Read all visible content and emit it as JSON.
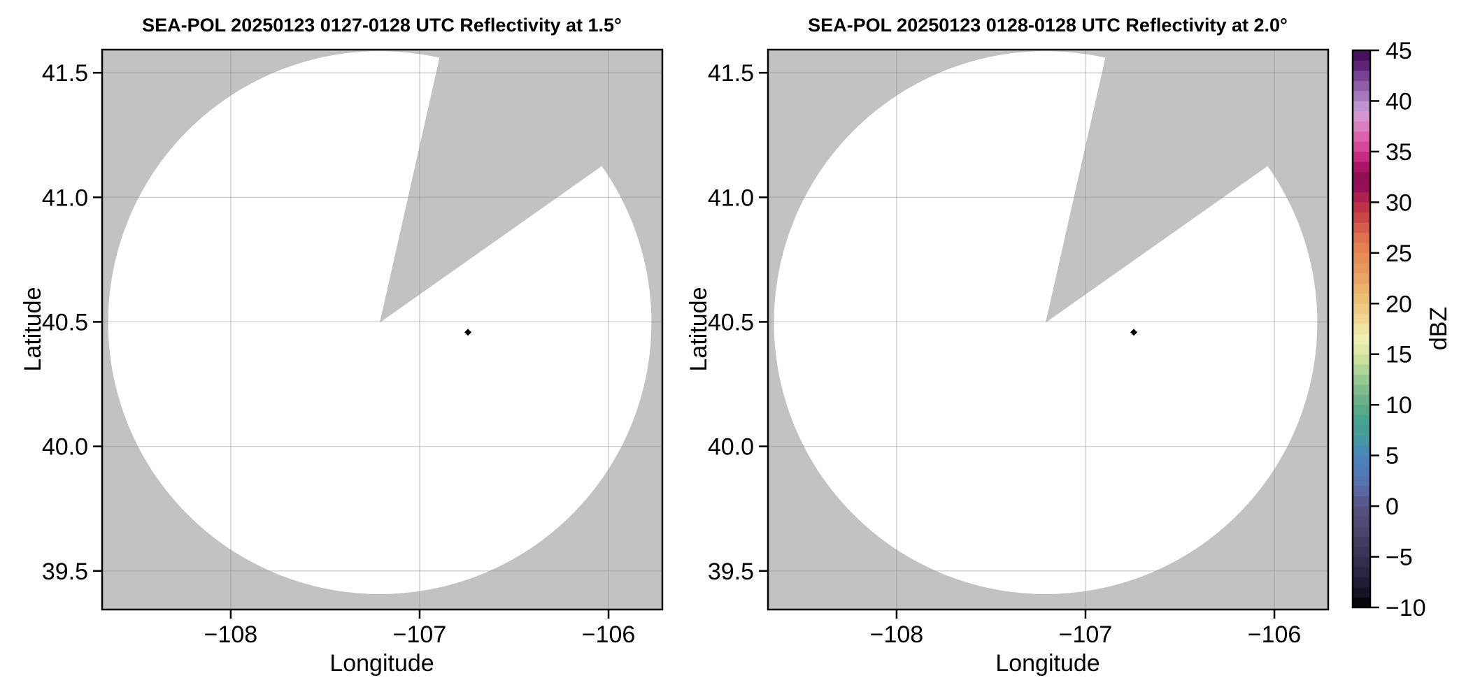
{
  "figure": {
    "background": "#ffffff"
  },
  "chart_data": {
    "type": "radar_ppi_pair",
    "field": "Reflectivity",
    "xlabel": "Longitude",
    "ylabel": "Latitude",
    "xlim": [
      -108.681,
      -105.715
    ],
    "ylim": [
      39.345,
      41.593
    ],
    "grid": true,
    "x_ticks": {
      "values": [
        -108,
        -107,
        -106
      ],
      "labels": [
        "−108",
        "−107",
        "−106"
      ]
    },
    "y_ticks": {
      "values": [
        41.5,
        41.0,
        40.5,
        40.0,
        39.5
      ],
      "labels": [
        "41.5",
        "41.0",
        "40.5",
        "40.0",
        "39.5"
      ]
    },
    "panels": [
      {
        "title": "SEA-POL 20250123 0127-0128 UTC Reflectivity at 1.5°",
        "radar_name": "SEA-POL",
        "date": "20250123",
        "time_utc": "0127-0128",
        "elevation_deg": 1.5
      },
      {
        "title": "SEA-POL 20250123 0128-0128 UTC Reflectivity at 2.0°",
        "radar_name": "SEA-POL",
        "date": "20250123",
        "time_utc": "0128-0128",
        "elevation_deg": 2.0
      }
    ],
    "radar": {
      "lon": -107.211,
      "lat": 40.497,
      "range_radius_lat_deg": 1.09,
      "no_data_sector_azimuth_deg": [
        12.7,
        54.8
      ]
    },
    "echo_points": [
      {
        "lon": -106.744,
        "lat": 40.458
      }
    ],
    "colors": {
      "outside_range_fill": "#c2c2c2",
      "in_range_fill": "#ffffff",
      "gridline": "#8f8f8f",
      "spine": "#000000",
      "echo_point": "#000000"
    },
    "colorbar": {
      "label": "dBZ",
      "vmin": -10,
      "vmax": 45,
      "band_step_dbz": 1,
      "colormap_name": "ChaseSpectral-like",
      "ticks": {
        "values": [
          45,
          40,
          35,
          30,
          25,
          20,
          15,
          10,
          5,
          0,
          -5,
          -10
        ],
        "labels": [
          "45",
          "40",
          "35",
          "30",
          "25",
          "20",
          "15",
          "10",
          "5",
          "0",
          "−5",
          "−10"
        ]
      },
      "color_stops": [
        [
          -10,
          "#000000"
        ],
        [
          -8,
          "#1c1830"
        ],
        [
          -6,
          "#2f2945"
        ],
        [
          -4,
          "#413a5c"
        ],
        [
          -2,
          "#4e4770"
        ],
        [
          0,
          "#575180"
        ],
        [
          1,
          "#596099"
        ],
        [
          2,
          "#5870ae"
        ],
        [
          3.5,
          "#4f7cb9"
        ],
        [
          5,
          "#4a84bc"
        ],
        [
          6,
          "#4692ab"
        ],
        [
          7,
          "#449c9b"
        ],
        [
          8.5,
          "#47a392"
        ],
        [
          10,
          "#61ad88"
        ],
        [
          11.5,
          "#7fbd8d"
        ],
        [
          13,
          "#a3cf94"
        ],
        [
          14.5,
          "#cce09e"
        ],
        [
          15.5,
          "#e0eaa6"
        ],
        [
          16.5,
          "#eff0af"
        ],
        [
          17.5,
          "#f1e4a2"
        ],
        [
          19,
          "#efcf88"
        ],
        [
          20,
          "#edc57d"
        ],
        [
          21.5,
          "#ebb26c"
        ],
        [
          23,
          "#ea9c60"
        ],
        [
          25,
          "#e78853"
        ],
        [
          26.5,
          "#e0714d"
        ],
        [
          28,
          "#d05048"
        ],
        [
          29,
          "#c43a47"
        ],
        [
          30,
          "#b92c4b"
        ],
        [
          30.75,
          "#a81a53"
        ],
        [
          31.5,
          "#970f55"
        ],
        [
          32.25,
          "#8d0d51"
        ],
        [
          33,
          "#9c0f5c"
        ],
        [
          33.75,
          "#b2176e"
        ],
        [
          34.5,
          "#c62b80"
        ],
        [
          35,
          "#d23b90"
        ],
        [
          35.75,
          "#d84d9c"
        ],
        [
          36.5,
          "#db62ab"
        ],
        [
          37.25,
          "#dc77ba"
        ],
        [
          38,
          "#da8cc8"
        ],
        [
          38.75,
          "#d29bd3"
        ],
        [
          39.5,
          "#bd93cf"
        ],
        [
          40.25,
          "#a97fc2"
        ],
        [
          41,
          "#9a6bb3"
        ],
        [
          42,
          "#84509f"
        ],
        [
          43,
          "#6b3389"
        ],
        [
          43.75,
          "#591d72"
        ],
        [
          44.5,
          "#47125d"
        ],
        [
          45,
          "#3a0f4d"
        ]
      ]
    }
  }
}
